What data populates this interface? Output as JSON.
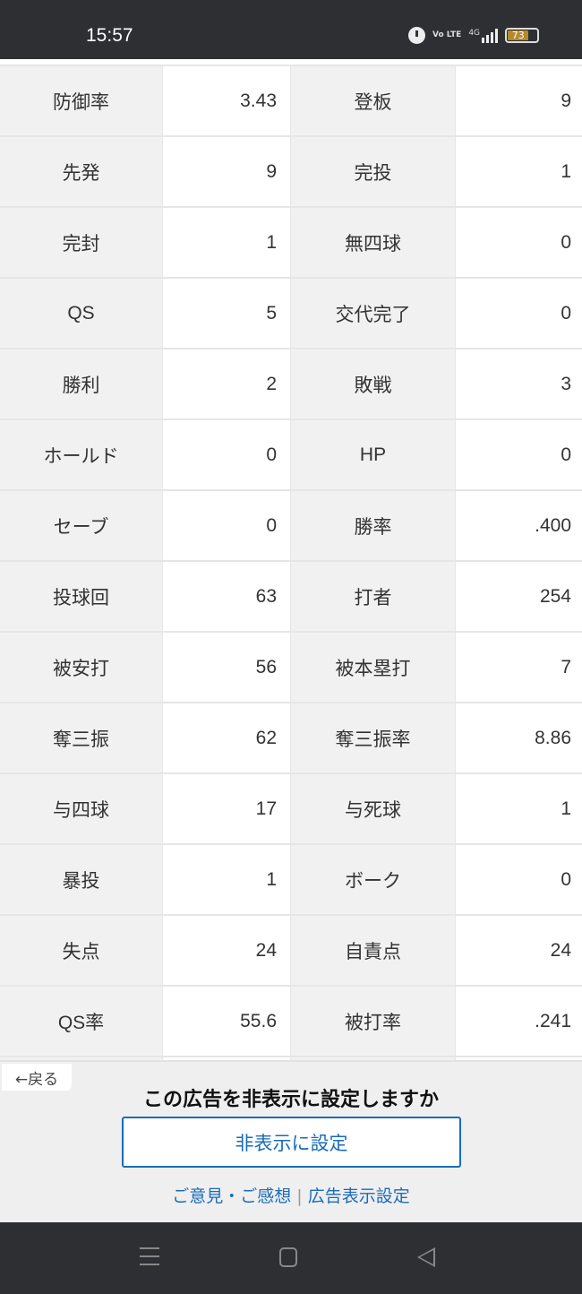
{
  "status_bar": {
    "time": "15:57",
    "battery": "73",
    "network": "4G",
    "volte": "Vo LTE"
  },
  "stats": [
    [
      "防御率",
      "3.43",
      "登板",
      "9"
    ],
    [
      "先発",
      "9",
      "完投",
      "1"
    ],
    [
      "完封",
      "1",
      "無四球",
      "0"
    ],
    [
      "QS",
      "5",
      "交代完了",
      "0"
    ],
    [
      "勝利",
      "2",
      "敗戦",
      "3"
    ],
    [
      "ホールド",
      "0",
      "HP",
      "0"
    ],
    [
      "セーブ",
      "0",
      "勝率",
      ".400"
    ],
    [
      "投球回",
      "63",
      "打者",
      "254"
    ],
    [
      "被安打",
      "56",
      "被本塁打",
      "7"
    ],
    [
      "奪三振",
      "62",
      "奪三振率",
      "8.86"
    ],
    [
      "与四球",
      "17",
      "与死球",
      "1"
    ],
    [
      "暴投",
      "1",
      "ボーク",
      "0"
    ],
    [
      "失点",
      "24",
      "自責点",
      "24"
    ],
    [
      "QS率",
      "55.6",
      "被打率",
      ".241"
    ],
    [
      "",
      "",
      "",
      ""
    ]
  ],
  "ad": {
    "back_label": "←戻る",
    "question": "この広告を非表示に設定しますか",
    "hide_button": "非表示に設定",
    "feedback_link": "ご意見・ご感想",
    "separator": "|",
    "settings_link": "広告表示設定"
  },
  "colors": {
    "accent": "#1a6cb8",
    "label_bg": "#f1f1f1"
  }
}
